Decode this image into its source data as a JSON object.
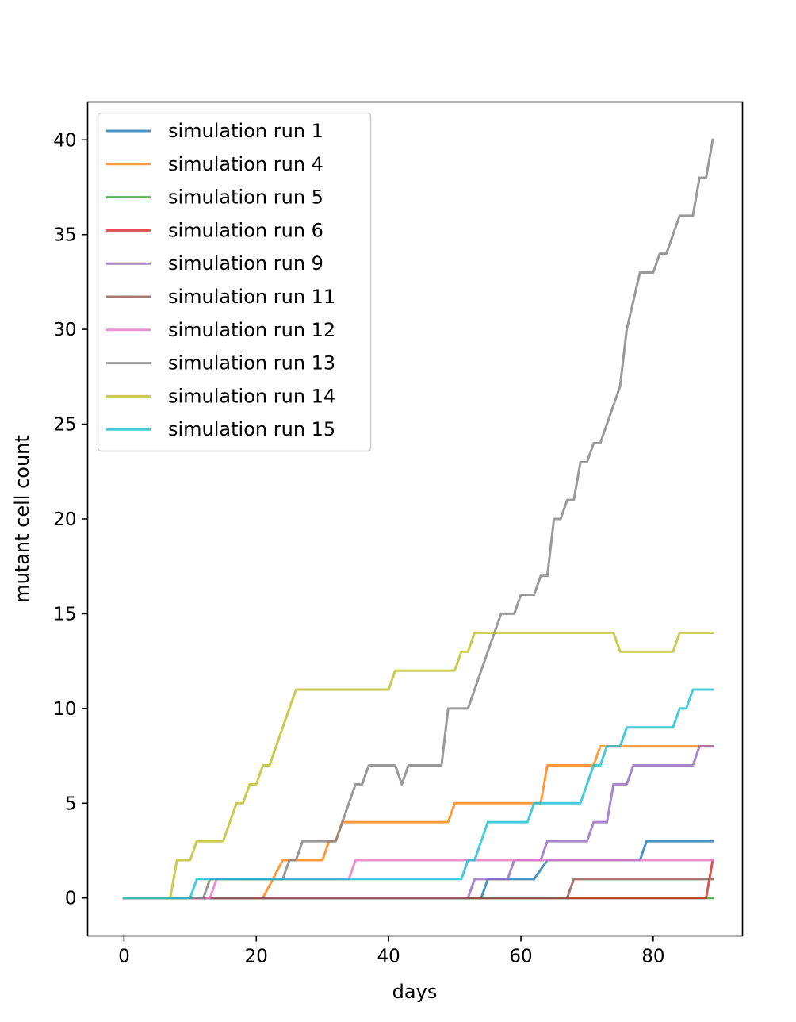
{
  "chart_data": {
    "type": "line",
    "title": "",
    "xlabel": "days",
    "ylabel": "mutant cell count",
    "xlim": [
      -5.5,
      93.5
    ],
    "ylim": [
      -2,
      42
    ],
    "x_ticks": [
      0,
      20,
      40,
      60,
      80
    ],
    "y_ticks": [
      0,
      5,
      10,
      15,
      20,
      25,
      30,
      35,
      40
    ],
    "grid": false,
    "legend_position": "upper left",
    "series": [
      {
        "name": "simulation run 1",
        "color": "#1f77b4",
        "x": [
          0,
          54,
          55,
          62,
          64,
          78,
          79,
          89
        ],
        "y": [
          0,
          0,
          1,
          1,
          2,
          2,
          3,
          3
        ]
      },
      {
        "name": "simulation run 4",
        "color": "#ff7f0e",
        "x": [
          0,
          21,
          24,
          25,
          26,
          30,
          31,
          32,
          33,
          34,
          49,
          50,
          63,
          64,
          71,
          72,
          89
        ],
        "y": [
          0,
          0,
          2,
          2,
          2,
          2,
          3,
          3,
          4,
          4,
          4,
          5,
          5,
          7,
          7,
          8,
          8
        ]
      },
      {
        "name": "simulation run 5",
        "color": "#2ca02c",
        "x": [
          0,
          89
        ],
        "y": [
          0,
          0
        ]
      },
      {
        "name": "simulation run 6",
        "color": "#d62728",
        "x": [
          0,
          88,
          89
        ],
        "y": [
          0,
          0,
          2
        ]
      },
      {
        "name": "simulation run 9",
        "color": "#9467bd",
        "x": [
          0,
          52,
          53,
          58,
          59,
          63,
          64,
          70,
          71,
          73,
          74,
          75,
          76,
          77,
          78,
          86,
          87,
          89
        ],
        "y": [
          0,
          0,
          1,
          1,
          2,
          2,
          3,
          3,
          4,
          4,
          6,
          6,
          6,
          7,
          7,
          7,
          8,
          8
        ]
      },
      {
        "name": "simulation run 11",
        "color": "#8c564b",
        "x": [
          0,
          67,
          68,
          89
        ],
        "y": [
          0,
          0,
          1,
          1
        ]
      },
      {
        "name": "simulation run 12",
        "color": "#e377c2",
        "x": [
          0,
          13,
          14,
          34,
          35,
          89
        ],
        "y": [
          0,
          0,
          1,
          1,
          2,
          2
        ]
      },
      {
        "name": "simulation run 13",
        "color": "#7f7f7f",
        "x": [
          0,
          12,
          13,
          24,
          25,
          26,
          27,
          28,
          32,
          33,
          35,
          36,
          37,
          38,
          40,
          41,
          42,
          43,
          48,
          49,
          51,
          52,
          53,
          54,
          55,
          56,
          57,
          59,
          60,
          61,
          62,
          63,
          64,
          65,
          66,
          67,
          68,
          69,
          70,
          71,
          72,
          73,
          75,
          76,
          78,
          79,
          80,
          81,
          82,
          83,
          84,
          85,
          86,
          87,
          88,
          89
        ],
        "y": [
          0,
          0,
          1,
          1,
          2,
          2,
          3,
          3,
          3,
          4,
          6,
          6,
          7,
          7,
          7,
          7,
          6,
          7,
          7,
          10,
          10,
          10,
          11,
          12,
          13,
          14,
          15,
          15,
          16,
          16,
          16,
          17,
          17,
          20,
          20,
          21,
          21,
          23,
          23,
          24,
          24,
          25,
          27,
          30,
          33,
          33,
          33,
          34,
          34,
          35,
          36,
          36,
          36,
          38,
          38,
          40
        ]
      },
      {
        "name": "simulation run 14",
        "color": "#bcbd22",
        "x": [
          0,
          7,
          8,
          9,
          10,
          11,
          12,
          15,
          16,
          17,
          18,
          19,
          20,
          21,
          22,
          23,
          24,
          25,
          26,
          40,
          41,
          50,
          51,
          52,
          53,
          74,
          75,
          83,
          84,
          89
        ],
        "y": [
          0,
          0,
          2,
          2,
          2,
          3,
          3,
          3,
          4,
          5,
          5,
          6,
          6,
          7,
          7,
          8,
          9,
          10,
          11,
          11,
          12,
          12,
          13,
          13,
          14,
          14,
          13,
          13,
          14,
          14
        ]
      },
      {
        "name": "simulation run 15",
        "color": "#17becf",
        "x": [
          0,
          10,
          11,
          12,
          51,
          52,
          53,
          54,
          55,
          60,
          61,
          62,
          63,
          69,
          70,
          71,
          72,
          73,
          74,
          75,
          76,
          83,
          84,
          85,
          86,
          89
        ],
        "y": [
          0,
          0,
          1,
          1,
          1,
          2,
          2,
          3,
          4,
          4,
          4,
          5,
          5,
          5,
          6,
          7,
          7,
          8,
          8,
          8,
          9,
          9,
          10,
          10,
          11,
          11
        ]
      }
    ]
  }
}
